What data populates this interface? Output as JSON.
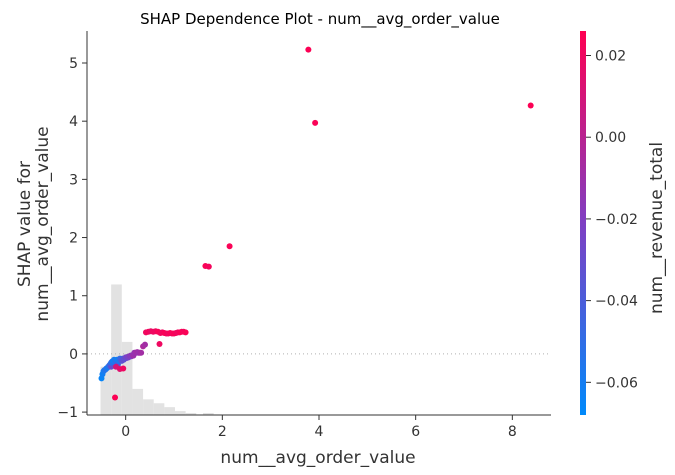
{
  "chart_data": {
    "type": "scatter",
    "title": "SHAP Dependence Plot - num__avg_order_value",
    "xlabel": "num__avg_order_value",
    "ylabel_lines": [
      "SHAP value for",
      "num__avg_order_value"
    ],
    "xlim": [
      -0.8,
      8.8
    ],
    "ylim": [
      -1.05,
      5.55
    ],
    "xticks": [
      0,
      2,
      4,
      6,
      8
    ],
    "yticks": [
      -1,
      0,
      1,
      2,
      3,
      4,
      5
    ],
    "colorbar": {
      "label": "num__revenue_total",
      "range": [
        -0.068,
        0.026
      ],
      "ticks": [
        "0.02",
        "0.00",
        "−0.02",
        "−0.04",
        "−0.06"
      ],
      "tick_values": [
        0.02,
        0.0,
        -0.02,
        -0.04,
        -0.06
      ],
      "colors": [
        "#008afb",
        "#7f3fc3",
        "#ff0052"
      ]
    },
    "histogram": {
      "bins": [
        {
          "x0": -0.52,
          "x1": -0.3,
          "h": 0.37
        },
        {
          "x0": -0.3,
          "x1": -0.08,
          "h": 1.0
        },
        {
          "x0": -0.08,
          "x1": 0.14,
          "h": 0.56
        },
        {
          "x0": 0.14,
          "x1": 0.36,
          "h": 0.2
        },
        {
          "x0": 0.36,
          "x1": 0.58,
          "h": 0.12
        },
        {
          "x0": 0.58,
          "x1": 0.8,
          "h": 0.09
        },
        {
          "x0": 0.8,
          "x1": 1.02,
          "h": 0.06
        },
        {
          "x0": 1.02,
          "x1": 1.24,
          "h": 0.03
        },
        {
          "x0": 1.24,
          "x1": 1.46,
          "h": 0.015
        },
        {
          "x0": 1.6,
          "x1": 1.82,
          "h": 0.015
        }
      ]
    },
    "points": [
      {
        "x": -0.5,
        "y": -0.42,
        "c": -0.065
      },
      {
        "x": -0.48,
        "y": -0.35,
        "c": -0.062
      },
      {
        "x": -0.46,
        "y": -0.3,
        "c": -0.06
      },
      {
        "x": -0.44,
        "y": -0.28,
        "c": -0.058
      },
      {
        "x": -0.42,
        "y": -0.27,
        "c": -0.055
      },
      {
        "x": -0.4,
        "y": -0.25,
        "c": -0.052
      },
      {
        "x": -0.38,
        "y": -0.24,
        "c": -0.06
      },
      {
        "x": -0.36,
        "y": -0.22,
        "c": -0.057
      },
      {
        "x": -0.34,
        "y": -0.2,
        "c": -0.05
      },
      {
        "x": -0.32,
        "y": -0.18,
        "c": -0.045
      },
      {
        "x": -0.3,
        "y": -0.22,
        "c": -0.03
      },
      {
        "x": -0.3,
        "y": -0.15,
        "c": -0.055
      },
      {
        "x": -0.28,
        "y": -0.13,
        "c": -0.05
      },
      {
        "x": -0.26,
        "y": -0.12,
        "c": -0.062
      },
      {
        "x": -0.24,
        "y": -0.1,
        "c": -0.06
      },
      {
        "x": -0.22,
        "y": -0.15,
        "c": -0.055
      },
      {
        "x": -0.2,
        "y": -0.12,
        "c": -0.05
      },
      {
        "x": -0.18,
        "y": -0.1,
        "c": -0.062
      },
      {
        "x": -0.16,
        "y": -0.18,
        "c": -0.04
      },
      {
        "x": -0.14,
        "y": -0.12,
        "c": -0.058
      },
      {
        "x": -0.12,
        "y": -0.08,
        "c": -0.05
      },
      {
        "x": -0.1,
        "y": -0.1,
        "c": -0.045
      },
      {
        "x": -0.08,
        "y": -0.12,
        "c": -0.035
      },
      {
        "x": -0.06,
        "y": -0.08,
        "c": -0.04
      },
      {
        "x": -0.04,
        "y": -0.1,
        "c": -0.03
      },
      {
        "x": -0.02,
        "y": -0.08,
        "c": -0.035
      },
      {
        "x": 0.0,
        "y": -0.06,
        "c": -0.025
      },
      {
        "x": 0.02,
        "y": -0.07,
        "c": -0.03
      },
      {
        "x": 0.04,
        "y": -0.05,
        "c": -0.02
      },
      {
        "x": 0.06,
        "y": -0.06,
        "c": -0.025
      },
      {
        "x": 0.08,
        "y": -0.04,
        "c": -0.02
      },
      {
        "x": 0.1,
        "y": -0.03,
        "c": -0.015
      },
      {
        "x": 0.12,
        "y": -0.04,
        "c": -0.02
      },
      {
        "x": 0.14,
        "y": -0.02,
        "c": -0.015
      },
      {
        "x": 0.16,
        "y": -0.03,
        "c": -0.01
      },
      {
        "x": 0.18,
        "y": 0.02,
        "c": -0.015
      },
      {
        "x": 0.2,
        "y": 0.02,
        "c": -0.01
      },
      {
        "x": 0.22,
        "y": 0.02,
        "c": -0.012
      },
      {
        "x": 0.24,
        "y": 0.03,
        "c": -0.008
      },
      {
        "x": 0.26,
        "y": 0.02,
        "c": -0.01
      },
      {
        "x": 0.28,
        "y": 0.02,
        "c": -0.012
      },
      {
        "x": 0.3,
        "y": 0.02,
        "c": -0.01
      },
      {
        "x": 0.32,
        "y": 0.02,
        "c": -0.008
      },
      {
        "x": 0.36,
        "y": 0.13,
        "c": -0.005
      },
      {
        "x": 0.4,
        "y": 0.16,
        "c": -0.008
      },
      {
        "x": -0.2,
        "y": -0.22,
        "c": 0.01
      },
      {
        "x": -0.12,
        "y": -0.26,
        "c": 0.015
      },
      {
        "x": -0.05,
        "y": -0.25,
        "c": 0.02
      },
      {
        "x": -0.22,
        "y": -0.75,
        "c": 0.025
      },
      {
        "x": 0.42,
        "y": 0.37,
        "c": 0.02
      },
      {
        "x": 0.47,
        "y": 0.38,
        "c": 0.022
      },
      {
        "x": 0.52,
        "y": 0.39,
        "c": 0.018
      },
      {
        "x": 0.57,
        "y": 0.38,
        "c": 0.02
      },
      {
        "x": 0.62,
        "y": 0.39,
        "c": 0.02
      },
      {
        "x": 0.67,
        "y": 0.38,
        "c": 0.024
      },
      {
        "x": 0.72,
        "y": 0.36,
        "c": 0.022
      },
      {
        "x": 0.76,
        "y": 0.37,
        "c": 0.02
      },
      {
        "x": 0.8,
        "y": 0.36,
        "c": 0.024
      },
      {
        "x": 0.84,
        "y": 0.35,
        "c": 0.023
      },
      {
        "x": 0.88,
        "y": 0.35,
        "c": 0.02
      },
      {
        "x": 0.92,
        "y": 0.36,
        "c": 0.024
      },
      {
        "x": 0.96,
        "y": 0.35,
        "c": 0.022
      },
      {
        "x": 1.0,
        "y": 0.35,
        "c": 0.024
      },
      {
        "x": 1.04,
        "y": 0.36,
        "c": 0.022
      },
      {
        "x": 1.08,
        "y": 0.37,
        "c": 0.02
      },
      {
        "x": 1.12,
        "y": 0.37,
        "c": 0.024
      },
      {
        "x": 1.16,
        "y": 0.38,
        "c": 0.024
      },
      {
        "x": 1.2,
        "y": 0.38,
        "c": 0.022
      },
      {
        "x": 1.24,
        "y": 0.37,
        "c": 0.024
      },
      {
        "x": 0.7,
        "y": 0.17,
        "c": 0.02
      },
      {
        "x": 1.65,
        "y": 1.51,
        "c": 0.024
      },
      {
        "x": 1.72,
        "y": 1.5,
        "c": 0.022
      },
      {
        "x": 2.15,
        "y": 1.85,
        "c": 0.024
      },
      {
        "x": 3.78,
        "y": 5.23,
        "c": 0.025
      },
      {
        "x": 3.92,
        "y": 3.97,
        "c": 0.024
      },
      {
        "x": 8.38,
        "y": 4.27,
        "c": 0.025
      }
    ]
  }
}
